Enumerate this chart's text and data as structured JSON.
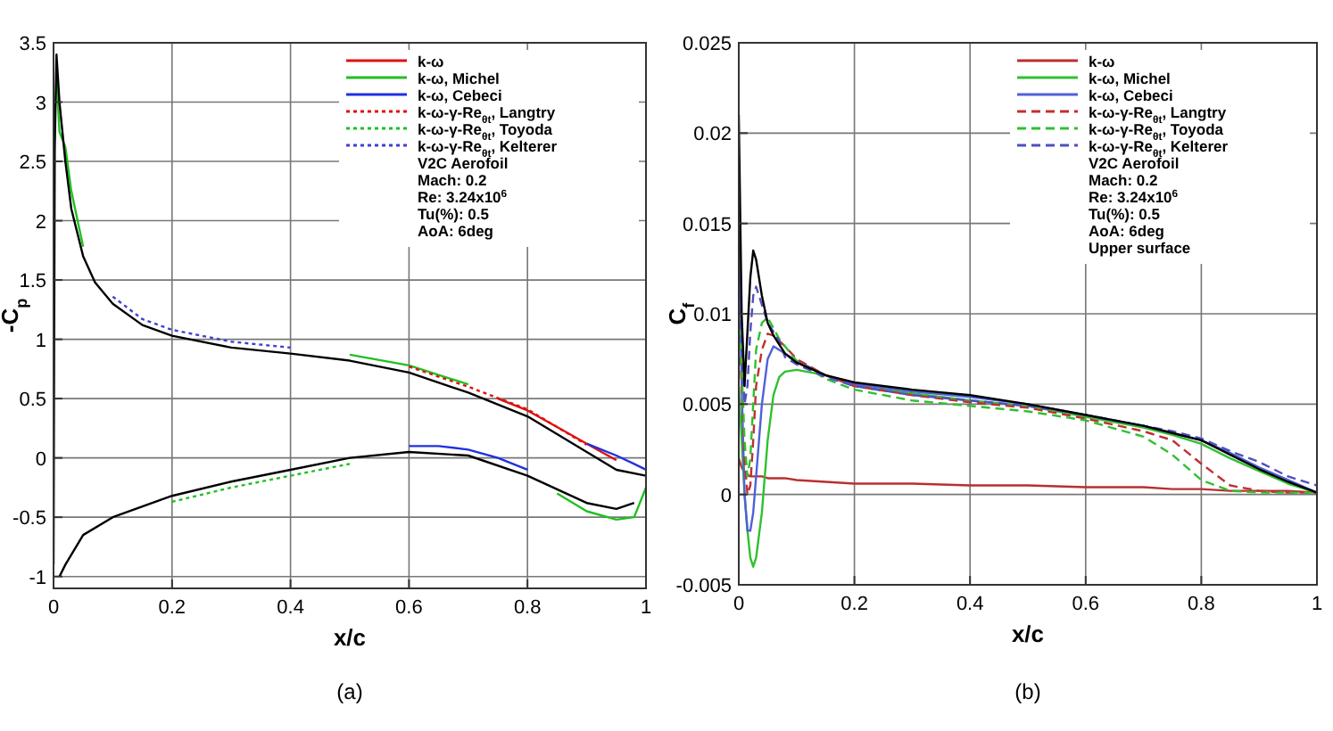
{
  "chart_data": [
    {
      "type": "line",
      "title": "(a)",
      "xlabel": "x/c",
      "ylabel": "-C$_{p}$",
      "xlim": [
        0,
        1
      ],
      "ylim": [
        -1.1,
        3.5
      ],
      "xticks": [
        0,
        0.2,
        0.4,
        0.6,
        0.8,
        1
      ],
      "yticks": [
        -1,
        -0.5,
        0,
        0.5,
        1,
        1.5,
        2,
        2.5,
        3,
        3.5
      ],
      "grid": true,
      "legend": "top right",
      "marker": "none",
      "annotations": [
        "V2C Aerofoil",
        "Mach: 0.2",
        "Re: 3.24x10$^{6}$",
        "Tu(%): 0.5",
        "AoA: 6deg"
      ],
      "series": [
        {
          "name": "k-ω",
          "color": "#e01010",
          "line_style": "solid",
          "x": [
            0.75,
            0.8,
            0.85,
            0.9,
            0.95
          ],
          "values": [
            0.5,
            0.4,
            0.26,
            0.12,
            -0.02
          ]
        },
        {
          "name": "k-ω, Michel",
          "color": "#20c020",
          "line_style": "solid",
          "x": [
            0.005,
            0.01,
            0.02,
            0.03,
            0.05,
            0.45,
            0.5,
            0.6,
            0.7
          ],
          "values": [
            3.2,
            2.75,
            2.62,
            2.25,
            1.78,
            null,
            0.87,
            0.78,
            0.62
          ]
        },
        {
          "color": "#20c020",
          "line_style": "solid",
          "x": [
            0.85,
            0.9,
            0.95,
            0.98,
            1
          ],
          "values": [
            -0.3,
            -0.45,
            -0.52,
            -0.5,
            -0.25
          ]
        },
        {
          "name": "k-ω, Cebeci",
          "color": "#2030e0",
          "line_style": "solid",
          "x": [
            0.9,
            0.95,
            0.98,
            1
          ],
          "values": [
            0.12,
            0.02,
            -0.05,
            -0.1
          ]
        },
        {
          "color": "#2030e0",
          "line_style": "solid",
          "x": [
            0.6,
            0.65,
            0.7,
            0.75,
            0.8
          ],
          "values": [
            0.1,
            0.1,
            0.07,
            0.0,
            -0.1
          ]
        },
        {
          "name": "k-ω-γ-Re$_{θt}$, Langtry",
          "color": "#e01010",
          "line_style": "dotted",
          "x": [
            0.6,
            0.7,
            0.8,
            0.9
          ],
          "values": [
            0.77,
            0.6,
            0.41,
            0.11
          ]
        },
        {
          "name": "k-ω-γ-Re$_{θt}$, Toyoda",
          "color": "#20c020",
          "line_style": "dotted",
          "x": [
            0.2,
            0.3,
            0.4,
            0.5
          ],
          "values": [
            -0.37,
            -0.25,
            -0.15,
            -0.05
          ]
        },
        {
          "name": "k-ω-γ-Re$_{θt}$, Kelterer",
          "color": "#4040d0",
          "line_style": "dotted",
          "x": [
            0.1,
            0.15,
            0.2,
            0.3,
            0.4
          ],
          "values": [
            1.36,
            1.17,
            1.08,
            0.98,
            0.93
          ]
        },
        {
          "color": "#000000",
          "line_style": "solid",
          "x": [
            0,
            0.002,
            0.005,
            0.01,
            0.02,
            0.03,
            0.05,
            0.07,
            0.1,
            0.15,
            0.2,
            0.3,
            0.4,
            0.5,
            0.6,
            0.7,
            0.8,
            0.9,
            0.95,
            1
          ],
          "values": [
            -0.9,
            2.6,
            3.4,
            3.0,
            2.5,
            2.1,
            1.7,
            1.48,
            1.3,
            1.12,
            1.03,
            0.93,
            0.88,
            0.82,
            0.72,
            0.55,
            0.35,
            0.05,
            -0.1,
            -0.15
          ]
        },
        {
          "color": "#000000",
          "line_style": "solid",
          "x": [
            0.01,
            0.02,
            0.05,
            0.1,
            0.2,
            0.3,
            0.4,
            0.5,
            0.6,
            0.7,
            0.8,
            0.9,
            0.95,
            0.98
          ],
          "values": [
            -1.0,
            -0.9,
            -0.65,
            -0.5,
            -0.32,
            -0.2,
            -0.1,
            0.0,
            0.05,
            0.02,
            -0.15,
            -0.38,
            -0.43,
            -0.38
          ]
        }
      ]
    },
    {
      "type": "line",
      "title": "(b)",
      "xlabel": "x/c",
      "ylabel": "C$_{f}$",
      "xlim": [
        0,
        1
      ],
      "ylim": [
        -0.005,
        0.025
      ],
      "xticks": [
        0,
        0.2,
        0.4,
        0.6,
        0.8,
        1
      ],
      "yticks": [
        -0.005,
        0,
        0.005,
        0.01,
        0.015,
        0.02,
        0.025
      ],
      "grid": true,
      "legend": "top right",
      "marker": "none",
      "annotations": [
        "V2C Aerofoil",
        "Mach: 0.2",
        "Re: 3.24x10$^{6}$",
        "Tu(%): 0.5",
        "AoA: 6deg",
        "Upper surface"
      ],
      "x": [
        0,
        0.005,
        0.01,
        0.015,
        0.02,
        0.025,
        0.03,
        0.04,
        0.05,
        0.06,
        0.07,
        0.08,
        0.1,
        0.15,
        0.2,
        0.3,
        0.4,
        0.5,
        0.6,
        0.7,
        0.75,
        0.8,
        0.85,
        0.9,
        0.95,
        1
      ],
      "series": [
        {
          "name": "k-ω",
          "color": "#b83030",
          "line_style": "solid",
          "values": [
            0.002,
            0.0015,
            0.0012,
            0.0011,
            0.001,
            0.001,
            0.001,
            0.001,
            0.0009,
            0.0009,
            0.0009,
            0.0009,
            0.0008,
            0.0007,
            0.0006,
            0.0006,
            0.0005,
            0.0005,
            0.0004,
            0.0004,
            0.0003,
            0.0003,
            0.0002,
            0.0002,
            0.0002,
            0.0001
          ]
        },
        {
          "name": "k-ω, Michel",
          "color": "#30c030",
          "line_style": "solid",
          "values": [
            0.006,
            0.003,
            0.0,
            -0.002,
            -0.0035,
            -0.004,
            -0.0035,
            -0.001,
            0.003,
            0.0055,
            0.0065,
            0.0068,
            0.0069,
            0.0066,
            0.006,
            0.0056,
            0.0052,
            0.0049,
            0.0043,
            0.0037,
            0.0033,
            0.0028,
            0.002,
            0.0013,
            0.0006,
            0.0001
          ]
        },
        {
          "name": "k-ω, Cebeci",
          "color": "#5060d8",
          "line_style": "solid",
          "values": [
            0.014,
            0.006,
            0.0,
            -0.002,
            -0.002,
            -0.001,
            0.001,
            0.005,
            0.0075,
            0.0082,
            0.008,
            0.0078,
            0.0074,
            0.0066,
            0.0061,
            0.0057,
            0.0054,
            0.005,
            0.0044,
            0.0038,
            0.0034,
            0.003,
            0.0023,
            0.0015,
            0.0008,
            0.0001
          ]
        },
        {
          "name": "k-ω-γ-Re$_{θt}$, Langtry",
          "color": "#c03030",
          "line_style": "dashed",
          "values": [
            0.01,
            0.006,
            0.002,
            0.0,
            0.0005,
            0.003,
            0.006,
            0.008,
            0.0089,
            0.0088,
            0.0085,
            0.0082,
            0.0075,
            0.0066,
            0.006,
            0.0055,
            0.0051,
            0.0048,
            0.0042,
            0.0035,
            0.003,
            0.0017,
            0.0005,
            0.0002,
            0.0001,
            0.0001
          ]
        },
        {
          "name": "k-ω-γ-Re$_{θt}$, Toyoda",
          "color": "#30c030",
          "line_style": "dashed",
          "values": [
            0.01,
            0.007,
            0.003,
            0.001,
            0.002,
            0.005,
            0.008,
            0.0095,
            0.0098,
            0.0092,
            0.0086,
            0.0082,
            0.0074,
            0.0064,
            0.0058,
            0.0052,
            0.0049,
            0.0046,
            0.0041,
            0.0032,
            0.0022,
            0.0008,
            0.0002,
            0.0001,
            0.0001,
            0.0001
          ]
        },
        {
          "name": "k-ω-γ-Re$_{θt}$, Kelterer",
          "color": "#5050c0",
          "line_style": "dashed",
          "values": [
            0.012,
            0.008,
            0.005,
            0.006,
            0.009,
            0.011,
            0.0115,
            0.0105,
            0.0095,
            0.009,
            0.0085,
            0.0076,
            0.0072,
            0.0065,
            0.006,
            0.0055,
            0.0052,
            0.0049,
            0.0044,
            0.0038,
            0.0035,
            0.0031,
            0.0024,
            0.0018,
            0.001,
            0.0005
          ]
        },
        {
          "color": "#000000",
          "line_style": "solid",
          "values": [
            0.021,
            0.01,
            0.006,
            0.009,
            0.012,
            0.0135,
            0.013,
            0.011,
            0.0095,
            0.0088,
            0.0083,
            0.0078,
            0.0073,
            0.0066,
            0.0062,
            0.0058,
            0.0055,
            0.005,
            0.0044,
            0.0038,
            0.0034,
            0.003,
            0.0022,
            0.0014,
            0.0007,
            0.0001
          ]
        }
      ]
    }
  ]
}
